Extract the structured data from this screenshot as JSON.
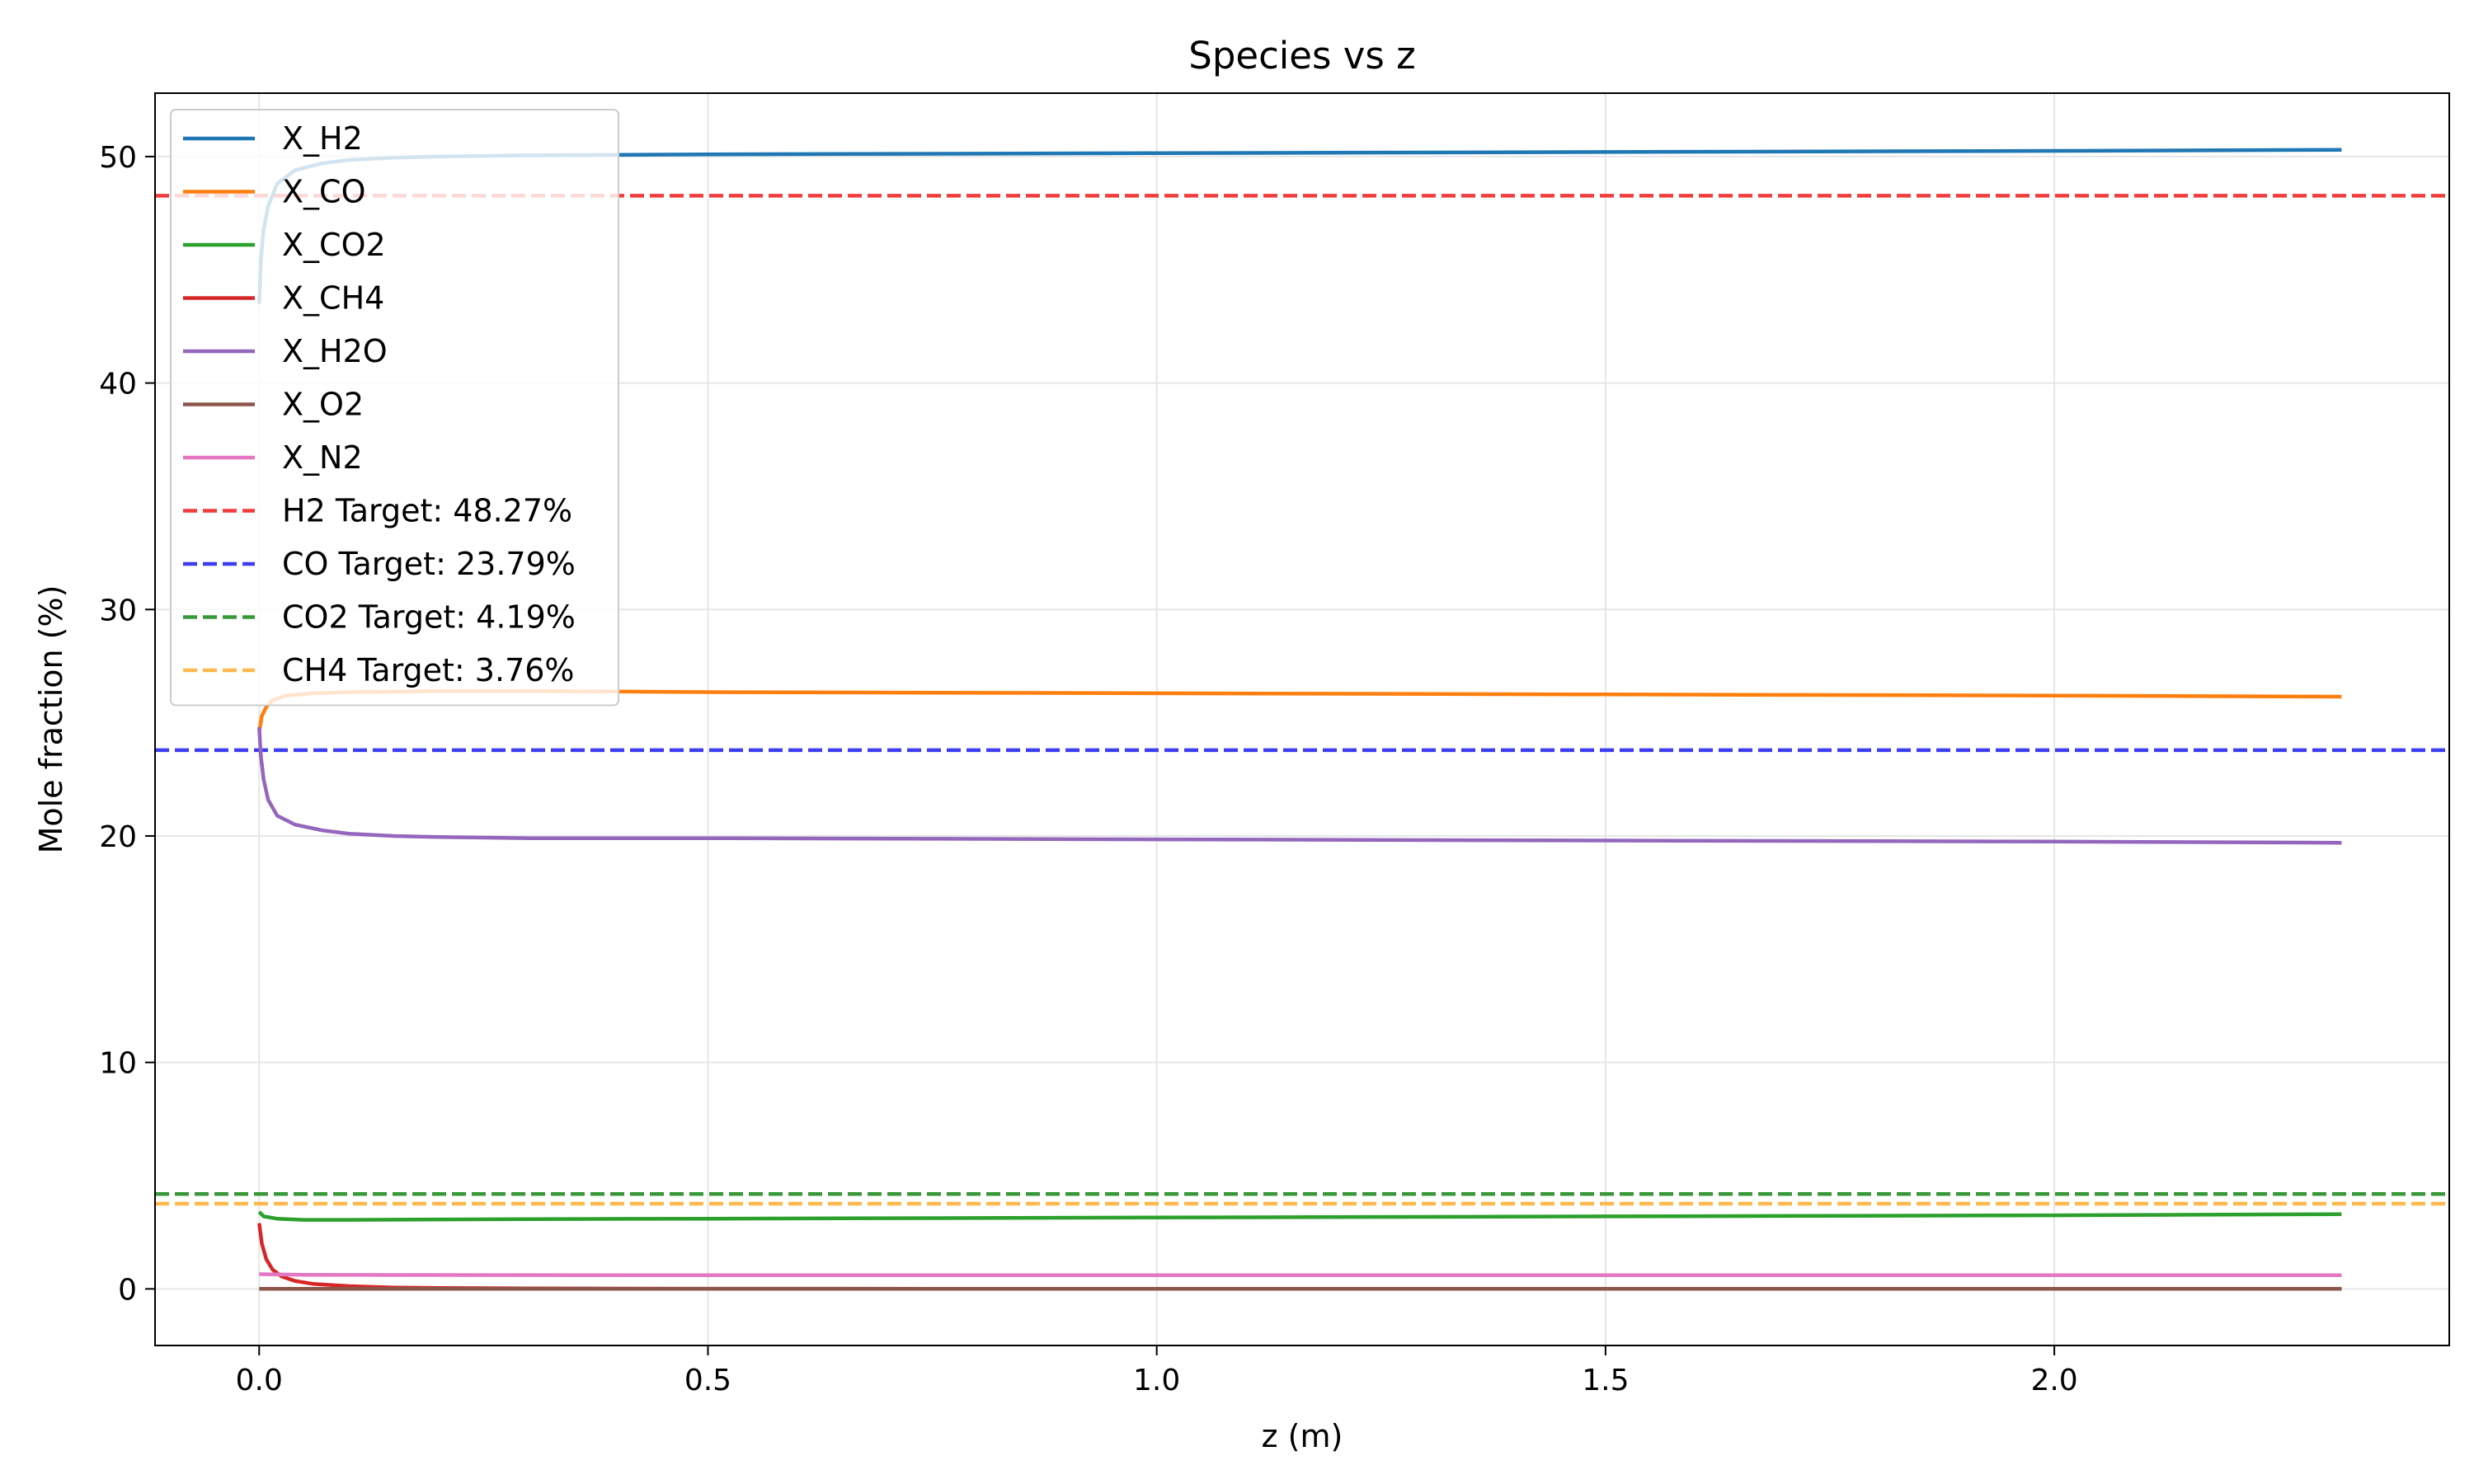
{
  "chart_data": {
    "type": "line",
    "title": "Species vs z",
    "xlabel": "z (m)",
    "ylabel": "Mole fraction (%)",
    "xlim": [
      -0.116,
      2.44
    ],
    "ylim": [
      -2.5,
      52.8
    ],
    "xticks": [
      0.0,
      0.5,
      1.0,
      1.5,
      2.0
    ],
    "xtick_labels": [
      "0.0",
      "0.5",
      "1.0",
      "1.5",
      "2.0"
    ],
    "yticks": [
      0,
      10,
      20,
      30,
      40,
      50
    ],
    "ytick_labels": [
      "0",
      "10",
      "20",
      "30",
      "40",
      "50"
    ],
    "grid": true,
    "legend_position": "upper-left",
    "series": [
      {
        "name": "X_H2",
        "color": "#1f77b4",
        "x": [
          0.0,
          0.002,
          0.005,
          0.01,
          0.02,
          0.04,
          0.07,
          0.1,
          0.15,
          0.2,
          0.3,
          0.5,
          1.0,
          1.5,
          2.0,
          2.32
        ],
        "y": [
          43.5,
          45.5,
          46.8,
          47.8,
          48.8,
          49.4,
          49.7,
          49.85,
          49.95,
          50.0,
          50.05,
          50.1,
          50.15,
          50.2,
          50.25,
          50.3
        ]
      },
      {
        "name": "X_CO",
        "color": "#ff7f0e",
        "x": [
          0.0,
          0.003,
          0.008,
          0.015,
          0.03,
          0.06,
          0.1,
          0.2,
          0.3,
          0.5,
          1.0,
          1.5,
          2.0,
          2.32
        ],
        "y": [
          24.6,
          25.3,
          25.7,
          26.0,
          26.2,
          26.3,
          26.35,
          26.4,
          26.4,
          26.35,
          26.3,
          26.25,
          26.2,
          26.15
        ]
      },
      {
        "name": "X_CO2",
        "color": "#2ca02c",
        "x": [
          0.0,
          0.005,
          0.02,
          0.05,
          0.1,
          0.3,
          0.5,
          1.0,
          1.5,
          2.0,
          2.32
        ],
        "y": [
          3.4,
          3.2,
          3.1,
          3.05,
          3.05,
          3.08,
          3.1,
          3.15,
          3.2,
          3.25,
          3.3
        ]
      },
      {
        "name": "X_CH4",
        "color": "#d62728",
        "x": [
          0.0,
          0.003,
          0.008,
          0.015,
          0.025,
          0.04,
          0.06,
          0.1,
          0.15,
          0.2,
          0.3,
          0.5,
          1.0,
          1.5,
          2.0,
          2.32
        ],
        "y": [
          2.9,
          2.0,
          1.3,
          0.85,
          0.55,
          0.35,
          0.22,
          0.12,
          0.06,
          0.04,
          0.02,
          0.01,
          0.0,
          0.0,
          0.0,
          0.0
        ]
      },
      {
        "name": "X_H2O",
        "color": "#9467bd",
        "x": [
          0.0,
          0.002,
          0.005,
          0.01,
          0.02,
          0.04,
          0.07,
          0.1,
          0.15,
          0.2,
          0.3,
          0.5,
          1.0,
          1.5,
          2.0,
          2.32
        ],
        "y": [
          24.8,
          23.5,
          22.5,
          21.6,
          20.9,
          20.5,
          20.25,
          20.1,
          20.0,
          19.95,
          19.9,
          19.9,
          19.85,
          19.8,
          19.75,
          19.7
        ]
      },
      {
        "name": "X_O2",
        "color": "#8c564b",
        "x": [
          0.0,
          2.32
        ],
        "y": [
          0.0,
          0.0
        ]
      },
      {
        "name": "X_N2",
        "color": "#e377c2",
        "x": [
          0.0,
          0.05,
          0.5,
          1.0,
          1.5,
          2.0,
          2.32
        ],
        "y": [
          0.65,
          0.62,
          0.6,
          0.6,
          0.6,
          0.6,
          0.6
        ]
      }
    ],
    "targets": [
      {
        "name": "H2 Target: 48.27%",
        "value": 48.27,
        "color": "#f23c3c"
      },
      {
        "name": "CO Target: 23.79%",
        "value": 23.79,
        "color": "#3c3cf2"
      },
      {
        "name": "CO2 Target: 4.19%",
        "value": 4.19,
        "color": "#389838"
      },
      {
        "name": "CH4 Target: 3.76%",
        "value": 3.76,
        "color": "#ffb84d"
      }
    ]
  }
}
